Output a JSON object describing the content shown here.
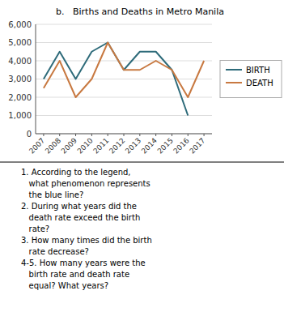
{
  "chart_data": {
    "type": "line",
    "title": "b.   Births and Deaths in Metro Manila",
    "x": [
      2007,
      2008,
      2009,
      2010,
      2011,
      2012,
      2013,
      2014,
      2015,
      2016,
      2017
    ],
    "xlim": [
      2006.5,
      2017.5
    ],
    "xticks": [
      2007,
      2008,
      2009,
      2010,
      2011,
      2012,
      2013,
      2014,
      2015,
      2016,
      2017
    ],
    "series": [
      {
        "name": "BIRTH",
        "color": "#2e6b7a",
        "values": [
          3000,
          4500,
          3000,
          4500,
          5000,
          3500,
          4500,
          4500,
          3500,
          1000,
          null
        ]
      },
      {
        "name": "DEATH",
        "color": "#c87941",
        "values": [
          2500,
          4000,
          2000,
          3000,
          5000,
          3500,
          3500,
          4000,
          3500,
          2000,
          4000
        ]
      }
    ],
    "ylim": [
      0,
      6000
    ],
    "yticks": [
      0,
      {
        "value": 1000,
        "label": "1,000"
      },
      {
        "value": 2000,
        "label": "2,000"
      },
      {
        "value": 3000,
        "label": "3,000"
      },
      {
        "value": 4000,
        "label": "4,000"
      },
      {
        "value": 5000,
        "label": "5,000"
      },
      {
        "value": 6000,
        "label": "6,000"
      }
    ],
    "grid": true,
    "legend": "right",
    "annotations": [
      "1. According to the legend,",
      "   what phenomenon represents",
      "   the blue line?",
      "2. During what years did the",
      "   death rate exceed the birth",
      "   rate?",
      "3. How many times did the birth",
      "   rate decrease?",
      "4-5. How many years were the",
      "   birth rate and death rate",
      "   equal? What years?"
    ]
  }
}
